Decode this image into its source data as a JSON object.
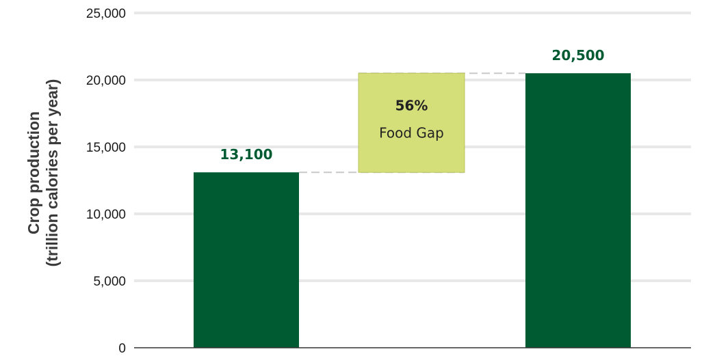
{
  "chart_data": {
    "type": "bar",
    "ylabel_line1": "Crop production",
    "ylabel_line2": "(trillion calories per year)",
    "ylim": [
      0,
      25000
    ],
    "yticks": [
      0,
      5000,
      10000,
      15000,
      20000,
      25000
    ],
    "ytick_labels": [
      "0",
      "5,000",
      "10,000",
      "15,000",
      "20,000",
      "25,000"
    ],
    "grid": true,
    "bars": [
      {
        "label": "13,100",
        "value": 13100
      },
      {
        "label": "20,500",
        "value": 20500
      }
    ],
    "gap": {
      "bottom": 13100,
      "top": 20500,
      "percent_label": "56%",
      "label": "Food Gap"
    },
    "colors": {
      "bar": "#005a32",
      "data_label": "#005a32",
      "gap_fill": "#d5df7a",
      "gap_stroke": "#b9c45c",
      "grid": "#d0d0d0",
      "connector": "#c8c8c8",
      "axis": "#333333"
    }
  }
}
